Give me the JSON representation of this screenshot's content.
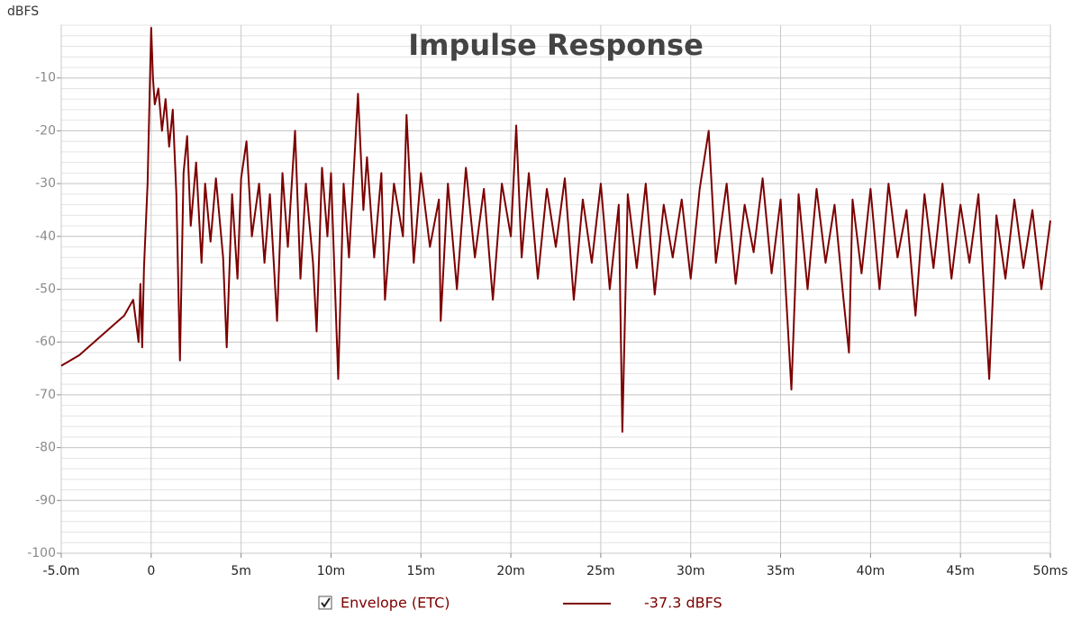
{
  "chart_data": {
    "type": "line",
    "title": "Impulse Response",
    "y_label": "dBFS",
    "x": [
      -5,
      -4,
      -3,
      -2,
      -1.5,
      -1,
      -0.7,
      -0.6,
      -0.5,
      -0.4,
      -0.2,
      0,
      0.1,
      0.2,
      0.4,
      0.6,
      0.8,
      1,
      1.2,
      1.4,
      1.6,
      1.8,
      2,
      2.2,
      2.5,
      2.8,
      3,
      3.3,
      3.6,
      4,
      4.2,
      4.5,
      4.8,
      5,
      5.3,
      5.6,
      6,
      6.3,
      6.6,
      7,
      7.3,
      7.6,
      8,
      8.3,
      8.6,
      9,
      9.2,
      9.5,
      9.8,
      10,
      10.4,
      10.7,
      11,
      11.5,
      11.8,
      12,
      12.4,
      12.8,
      13,
      13.5,
      14,
      14.2,
      14.6,
      15,
      15.5,
      16,
      16.1,
      16.5,
      17,
      17.5,
      18,
      18.5,
      19,
      19.5,
      20,
      20.3,
      20.6,
      21,
      21.5,
      22,
      22.5,
      23,
      23.5,
      24,
      24.5,
      25,
      25.5,
      26,
      26.2,
      26.5,
      27,
      27.5,
      28,
      28.5,
      29,
      29.5,
      30,
      30.5,
      31,
      31.4,
      32,
      32.5,
      33,
      33.5,
      34,
      34.5,
      35,
      35.6,
      36,
      36.5,
      37,
      37.5,
      38,
      38.5,
      38.8,
      39,
      39.5,
      40,
      40.5,
      41,
      41.5,
      42,
      42.5,
      43,
      43.5,
      44,
      44.5,
      45,
      45.5,
      46,
      46.6,
      47,
      47.5,
      48,
      48.5,
      49,
      49.5,
      50
    ],
    "series": [
      {
        "name": "Envelope (ETC)",
        "color": "#7d0000",
        "values": [
          -64.5,
          -62.5,
          -59.5,
          -56.5,
          -55,
          -52,
          -60,
          -49,
          -61,
          -46,
          -30,
          -0.5,
          -10,
          -15,
          -12,
          -20,
          -14,
          -23,
          -16,
          -32,
          -63.5,
          -28,
          -21,
          -38,
          -26,
          -45,
          -30,
          -41,
          -29,
          -44,
          -61,
          -32,
          -48,
          -29,
          -22,
          -40,
          -30,
          -45,
          -32,
          -56,
          -28,
          -42,
          -20,
          -48,
          -30,
          -45,
          -58,
          -27,
          -40,
          -28,
          -67,
          -30,
          -44,
          -13,
          -35,
          -25,
          -44,
          -28,
          -52,
          -30,
          -40,
          -17,
          -45,
          -28,
          -42,
          -33,
          -56,
          -30,
          -50,
          -27,
          -44,
          -31,
          -52,
          -30,
          -40,
          -19,
          -44,
          -28,
          -48,
          -31,
          -42,
          -29,
          -52,
          -33,
          -45,
          -30,
          -50,
          -34,
          -77,
          -32,
          -46,
          -30,
          -51,
          -34,
          -44,
          -33,
          -48,
          -31,
          -20,
          -45,
          -30,
          -49,
          -34,
          -43,
          -29,
          -47,
          -33,
          -69,
          -32,
          -50,
          -31,
          -45,
          -34,
          -52,
          -62,
          -33,
          -47,
          -31,
          -50,
          -30,
          -44,
          -35,
          -55,
          -32,
          -46,
          -30,
          -48,
          -34,
          -45,
          -32,
          -67,
          -36,
          -48,
          -33,
          -46,
          -35,
          -50,
          -37
        ],
        "readout": {
          "value": -37.3,
          "label": "-37.3 dBFS"
        }
      }
    ],
    "xlim": [
      -5,
      50
    ],
    "ylim": [
      -100,
      0
    ],
    "xticks": [
      {
        "value": -5,
        "label": "-5.0m"
      },
      0,
      {
        "value": 5,
        "label": "5m"
      },
      {
        "value": 10,
        "label": "10m"
      },
      {
        "value": 15,
        "label": "15m"
      },
      {
        "value": 20,
        "label": "20m"
      },
      {
        "value": 25,
        "label": "25m"
      },
      {
        "value": 30,
        "label": "30m"
      },
      {
        "value": 35,
        "label": "35m"
      },
      {
        "value": 40,
        "label": "40m"
      },
      {
        "value": 45,
        "label": "45m"
      },
      {
        "value": 50,
        "label": "50ms"
      }
    ],
    "yticks": [
      -10,
      -20,
      -30,
      -40,
      -50,
      -60,
      -70,
      -80,
      -90,
      -100
    ],
    "grid": true
  }
}
